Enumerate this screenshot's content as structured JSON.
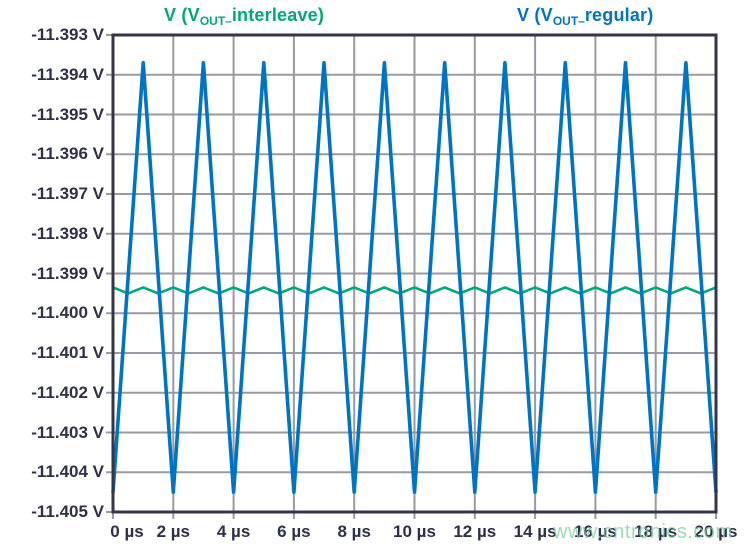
{
  "colors": {
    "background": "#FFFFFF",
    "grid": "#9A9AA2",
    "frame": "#34354A",
    "tick_text": "#2D3047",
    "watermark": "#7FCDA4"
  },
  "watermark": "www.cntronics.com",
  "legend": {
    "interleave": {
      "prefix": "V (V",
      "sub": "OUT–",
      "rest": "interleave)",
      "color": "#00A878"
    },
    "regular": {
      "prefix": "V (V",
      "sub": "OUT–",
      "rest": "regular)",
      "color": "#0074C4"
    }
  },
  "chart_data": {
    "type": "line",
    "grid": true,
    "legend_position": "top",
    "x_axis": {
      "min": 0,
      "max": 20,
      "tick_step": 2,
      "unit": "µs",
      "tick_labels": [
        "0 µs",
        "2 µs",
        "4 µs",
        "6 µs",
        "8 µs",
        "10 µs",
        "12 µs",
        "14 µs",
        "16 µs",
        "18 µs",
        "20 µs"
      ]
    },
    "y_axis": {
      "min": -11.405,
      "max": -11.393,
      "tick_step": 0.001,
      "unit": "V",
      "tick_labels": [
        "-11.393 V",
        "-11.394 V",
        "-11.395 V",
        "-11.396 V",
        "-11.397 V",
        "-11.398 V",
        "-11.399 V",
        "-11.400 V",
        "-11.401 V",
        "-11.402 V",
        "-11.403 V",
        "-11.404 V",
        "-11.405 V"
      ]
    },
    "series": [
      {
        "id": "interleave",
        "name": "V (VOUT_interleave)",
        "color": "#00A878",
        "width": 2.6,
        "waveform": "triangle ripple, period 1 µs, ~0.15 mV peak-to-peak centered near -11.3994 V",
        "x": [
          0,
          0.5,
          1,
          1.5,
          2,
          2.5,
          3,
          3.5,
          4,
          4.5,
          5,
          5.5,
          6,
          6.5,
          7,
          7.5,
          8,
          8.5,
          9,
          9.5,
          10,
          10.5,
          11,
          11.5,
          12,
          12.5,
          13,
          13.5,
          14,
          14.5,
          15,
          15.5,
          16,
          16.5,
          17,
          17.5,
          18,
          18.5,
          19,
          19.5,
          20
        ],
        "y": [
          -11.39935,
          -11.3995,
          -11.39935,
          -11.3995,
          -11.39935,
          -11.3995,
          -11.39935,
          -11.3995,
          -11.39935,
          -11.3995,
          -11.39935,
          -11.3995,
          -11.39935,
          -11.3995,
          -11.39935,
          -11.3995,
          -11.39935,
          -11.3995,
          -11.39935,
          -11.3995,
          -11.39935,
          -11.3995,
          -11.39935,
          -11.3995,
          -11.39935,
          -11.3995,
          -11.39935,
          -11.3995,
          -11.39935,
          -11.3995,
          -11.39935,
          -11.3995,
          -11.39935,
          -11.3995,
          -11.39935,
          -11.3995,
          -11.39935,
          -11.3995,
          -11.39935,
          -11.3995,
          -11.39935
        ]
      },
      {
        "id": "regular",
        "name": "V (VOUT_regular)",
        "color": "#0074C4",
        "width": 3.6,
        "waveform": "triangle ripple, period 2 µs, troughs -11.4045 V at even µs, peaks -11.3937 V at odd µs",
        "x": [
          0,
          1,
          2,
          3,
          4,
          5,
          6,
          7,
          8,
          9,
          10,
          11,
          12,
          13,
          14,
          15,
          16,
          17,
          18,
          19,
          20
        ],
        "y": [
          -11.4045,
          -11.3937,
          -11.4045,
          -11.3937,
          -11.4045,
          -11.3937,
          -11.4045,
          -11.3937,
          -11.4045,
          -11.3937,
          -11.4045,
          -11.3937,
          -11.4045,
          -11.3937,
          -11.4045,
          -11.3937,
          -11.4045,
          -11.3937,
          -11.4045,
          -11.3937,
          -11.4045
        ]
      }
    ]
  }
}
